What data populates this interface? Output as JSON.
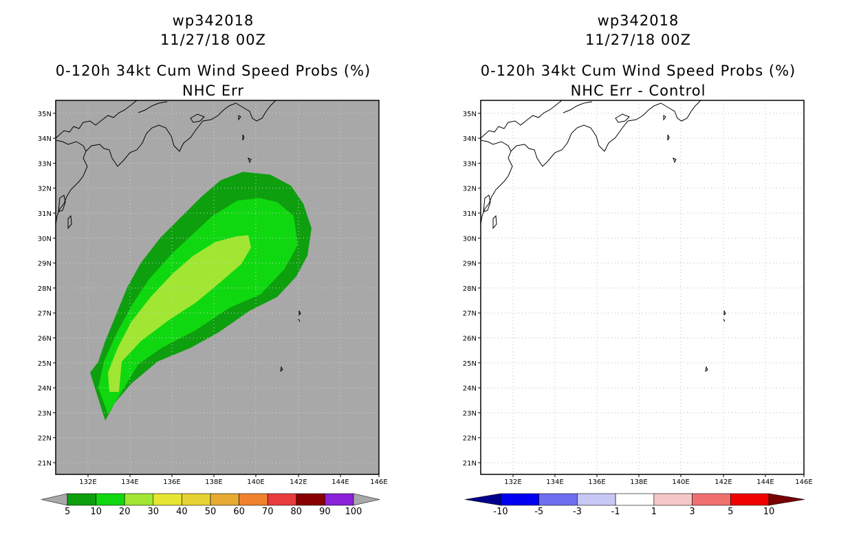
{
  "left": {
    "storm": "wp342018",
    "datetime": "11/27/18 00Z",
    "product": "0-120h 34kt Cum Wind Speed Probs (%)",
    "subtitle": "NHC Err",
    "colorbar": {
      "colors": [
        "#a8a8a8",
        "#0e9f0e",
        "#10d810",
        "#a0e632",
        "#e6e632",
        "#e6d232",
        "#e6aa32",
        "#f0822c",
        "#e83c3c",
        "#880000",
        "#8a22d8",
        "#a8a8a8"
      ],
      "labels": [
        "5",
        "10",
        "20",
        "30",
        "40",
        "50",
        "60",
        "70",
        "80",
        "90",
        "100"
      ]
    }
  },
  "right": {
    "storm": "wp342018",
    "datetime": "11/27/18 00Z",
    "product": "0-120h 34kt Cum Wind Speed Probs (%)",
    "subtitle": "NHC Err - Control",
    "colorbar": {
      "colors": [
        "#00008c",
        "#0000f0",
        "#6e6ef0",
        "#c8c8f5",
        "#ffffff",
        "#f5c8c8",
        "#f07070",
        "#f00000",
        "#780000"
      ],
      "labels": [
        "-10",
        "-5",
        "-3",
        "-1",
        "1",
        "3",
        "5",
        "10"
      ]
    }
  },
  "map": {
    "lon_ticks": [
      "132E",
      "134E",
      "136E",
      "138E",
      "140E",
      "142E",
      "144E",
      "146E"
    ],
    "lat_ticks": [
      "21N",
      "22N",
      "23N",
      "24N",
      "25N",
      "26N",
      "27N",
      "28N",
      "29N",
      "30N",
      "31N",
      "32N",
      "33N",
      "34N",
      "35N"
    ],
    "lon_range": [
      130.7,
      146.0
    ],
    "lat_range": [
      20.6,
      35.5
    ]
  },
  "chart_data": [
    {
      "type": "heatmap",
      "title": "0-120h 34kt Cum Wind Speed Probs (%) — NHC Err",
      "contour_levels": [
        5,
        10,
        20,
        30,
        40,
        50,
        60,
        70,
        80,
        90,
        100
      ],
      "max_probability_band": "20-30",
      "axis_x": "Longitude",
      "axis_y": "Latitude"
    },
    {
      "type": "heatmap",
      "title": "0-120h 34kt Cum Wind Speed Probs (%) — NHC Err - Control",
      "contour_levels": [
        -10,
        -5,
        -3,
        -1,
        1,
        3,
        5,
        10
      ],
      "max_probability_band": "-1 to 1",
      "axis_x": "Longitude",
      "axis_y": "Latitude"
    }
  ]
}
